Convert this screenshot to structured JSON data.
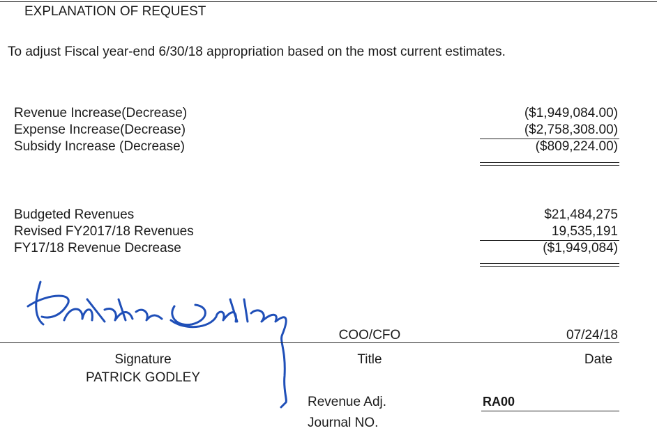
{
  "header": {
    "title": "EXPLANATION OF REQUEST"
  },
  "description": "To adjust Fiscal year-end 6/30/18 appropriation based on the most current estimates.",
  "adjustments": [
    {
      "label": "Revenue Increase(Decrease)",
      "value": "($1,949,084.00)"
    },
    {
      "label": "Expense Increase(Decrease)",
      "value": "($2,758,308.00)"
    },
    {
      "label": "Subsidy Increase (Decrease)",
      "value": "($809,224.00)"
    }
  ],
  "revenues": [
    {
      "label": "Budgeted Revenues",
      "value": "$21,484,275"
    },
    {
      "label": "Revised FY2017/18 Revenues",
      "value": "19,535,191"
    },
    {
      "label": "FY17/18 Revenue Decrease",
      "value": "($1,949,084)"
    }
  ],
  "signature_block": {
    "title_value": "COO/CFO",
    "date_value": "07/24/18",
    "signature_label": "Signature",
    "title_label": "Title",
    "date_label": "Date",
    "name": "PATRICK GODLEY"
  },
  "journal": {
    "label_1": "Revenue Adj.",
    "code": "RA00",
    "label_2": "Journal NO."
  }
}
